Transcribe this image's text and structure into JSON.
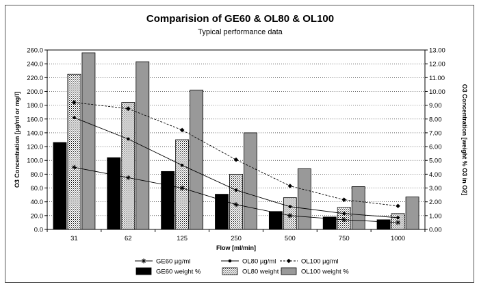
{
  "chart_data": {
    "type": "bar",
    "title": "Comparision of GE60 & OL80 & OL100",
    "subtitle": "Typical performance data",
    "xlabel": "Flow [ml/min]",
    "ylabel_left": "O3 Concentration [µg/ml or mg/l]",
    "ylabel_right": "O3 Concentration [weight % O3 in O2]",
    "categories": [
      "31",
      "62",
      "125",
      "250",
      "500",
      "750",
      "1000"
    ],
    "ylim_left": [
      0,
      260
    ],
    "ylim_right": [
      0,
      13
    ],
    "left_ticks": [
      "0.0",
      "20.0",
      "40.0",
      "60.0",
      "80.0",
      "100.0",
      "120.0",
      "140.0",
      "160.0",
      "180.0",
      "200.0",
      "220.0",
      "240.0",
      "260.0"
    ],
    "right_ticks": [
      "0.00",
      "1.00",
      "2.00",
      "3.00",
      "4.00",
      "5.00",
      "6.00",
      "7.00",
      "8.00",
      "9.00",
      "10.00",
      "11.00",
      "12.00",
      "13.00"
    ],
    "grid": "horizontal dotted",
    "legend_position": "bottom",
    "bar_series": [
      {
        "name": "GE60 weight %",
        "axis": "right",
        "fill": "#000000",
        "values": [
          6.3,
          5.2,
          4.2,
          2.55,
          1.3,
          0.9,
          0.7
        ]
      },
      {
        "name": "OL80 weight %",
        "axis": "right",
        "fill": "dotted",
        "values": [
          11.25,
          9.2,
          6.5,
          4.0,
          2.3,
          1.6,
          1.15
        ]
      },
      {
        "name": "OL100 weight %",
        "axis": "right",
        "fill": "#999999",
        "values": [
          12.8,
          12.15,
          10.1,
          7.0,
          4.4,
          3.1,
          2.35
        ]
      }
    ],
    "line_series": [
      {
        "name": "GE60 µg/ml",
        "axis": "left",
        "marker": "star",
        "style": "solid",
        "values": [
          90,
          75,
          60,
          36,
          20,
          14,
          10
        ]
      },
      {
        "name": "OL80 µg/ml",
        "axis": "left",
        "marker": "dot",
        "style": "solid",
        "values": [
          162,
          131,
          93,
          57,
          33,
          23,
          17
        ]
      },
      {
        "name": "OL100 µg/ml",
        "axis": "left",
        "marker": "diamond",
        "style": "dashed",
        "values": [
          184,
          175,
          144,
          101,
          63,
          43,
          34
        ]
      }
    ],
    "legend_items": [
      "GE60 µg/ml",
      "OL80 µg/ml",
      "OL100 µg/ml",
      "GE60 weight %",
      "OL80 weight %",
      "OL100 weight %"
    ]
  }
}
